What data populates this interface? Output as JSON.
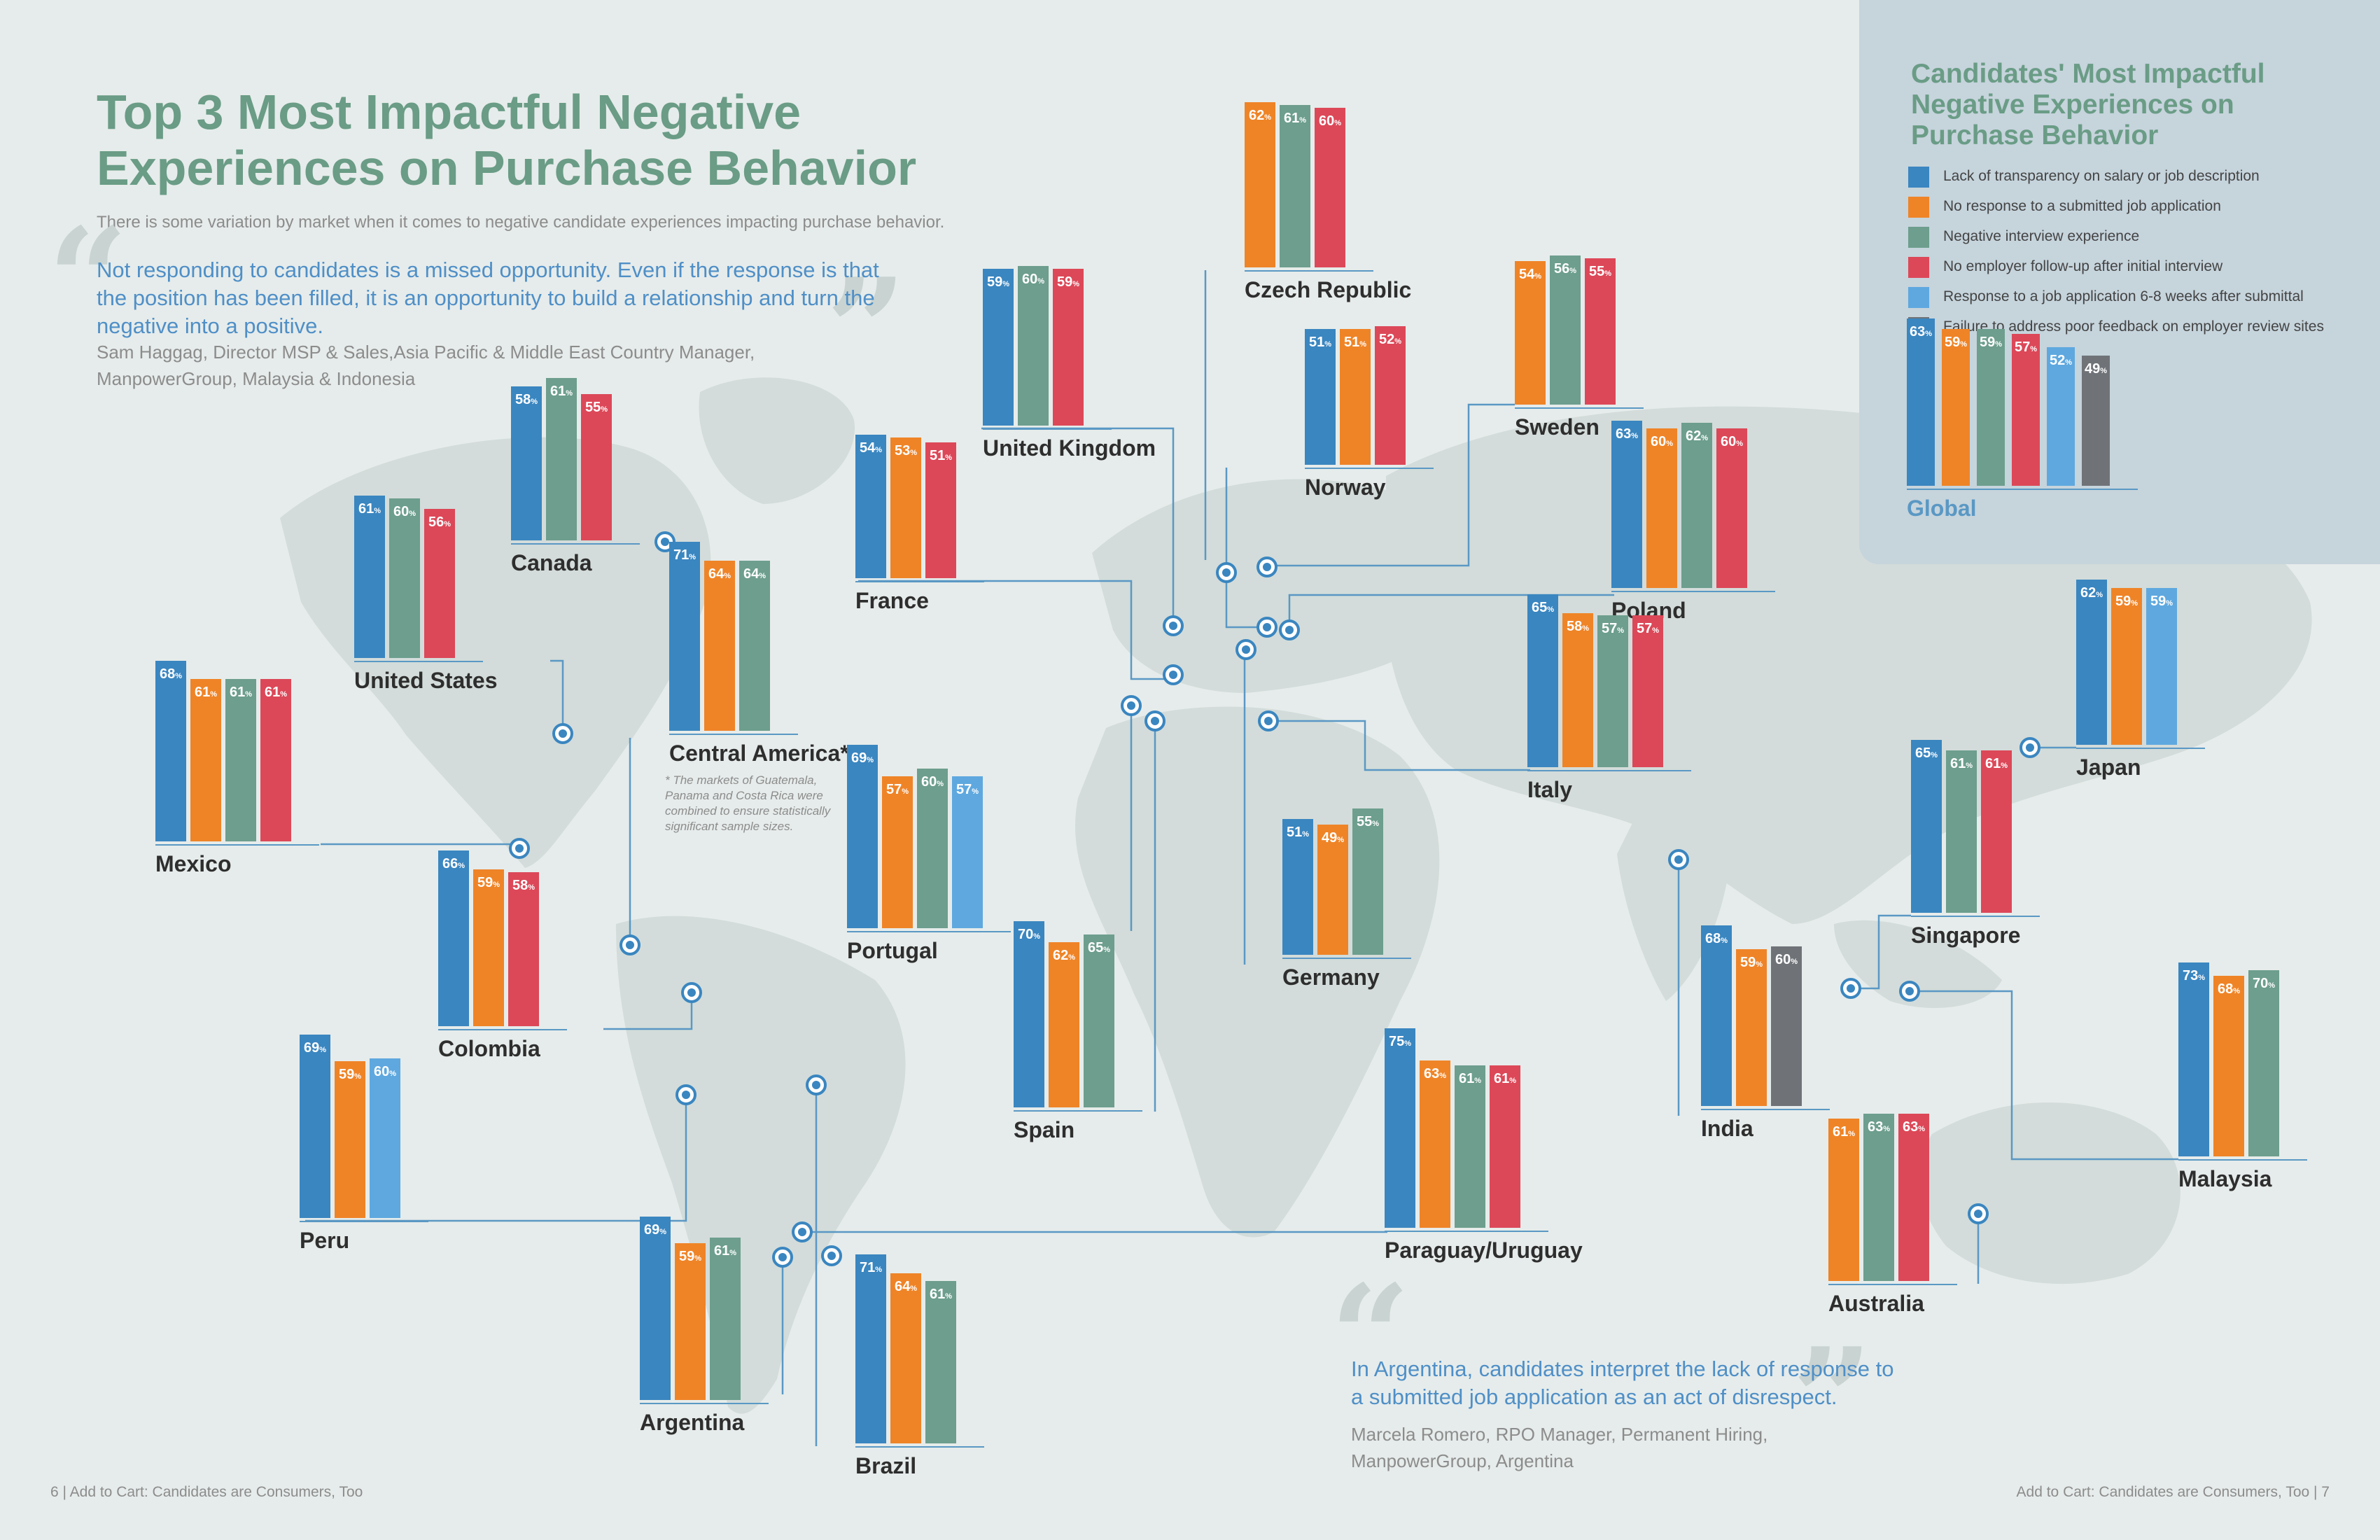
{
  "title": "Top 3 Most Impactful Negative Experiences on Purchase Behavior",
  "subtitle": "There is some variation by market when it comes to negative candidate experiences impacting purchase behavior.",
  "quote1": {
    "text": "Not responding to candidates is a missed opportunity. Even if the response is that the position has been filled, it is an opportunity to build a relationship and turn the negative into a positive.",
    "attribution": "Sam Haggag, Director MSP & Sales,Asia Pacific & Middle East Country Manager, ManpowerGroup, Malaysia & Indonesia"
  },
  "quote2": {
    "text": "In Argentina, candidates interpret the lack of response to a submitted job application as an act of disrespect.",
    "attribution": "Marcela Romero, RPO Manager, Permanent Hiring, ManpowerGroup, Argentina"
  },
  "footer_left": "6 |   Add to Cart: Candidates are Consumers, Too",
  "footer_right": "Add to Cart: Candidates are Consumers, Too   |  7",
  "central_america_note": "* The markets of Guatemala, Panama and Costa Rica were combined to ensure statistically significant sample sizes.",
  "legend_title": "Candidates' Most Impactful Negative Experiences on Purchase Behavior",
  "chart_data": {
    "type": "bar",
    "unit": "%",
    "series": [
      {
        "key": "salary",
        "name": "Lack of transparency on salary or job description",
        "color": "#3a86c0"
      },
      {
        "key": "noresp",
        "name": "No response to a submitted job application",
        "color": "#ef8427"
      },
      {
        "key": "interview",
        "name": "Negative interview experience",
        "color": "#6d9e8e"
      },
      {
        "key": "followup",
        "name": "No employer follow-up after initial interview",
        "color": "#dc4858"
      },
      {
        "key": "delay",
        "name": "Response to a job application 6-8 weeks after submittal",
        "color": "#5ea8df"
      },
      {
        "key": "feedback",
        "name": "Failure to address poor feedback on employer review sites",
        "color": "#6f7378"
      }
    ],
    "markets": [
      {
        "name": "Global",
        "bars": [
          [
            "salary",
            63
          ],
          [
            "noresp",
            59
          ],
          [
            "interview",
            59
          ],
          [
            "followup",
            57
          ],
          [
            "delay",
            52
          ],
          [
            "feedback",
            49
          ]
        ]
      },
      {
        "name": "Canada",
        "bars": [
          [
            "salary",
            58
          ],
          [
            "interview",
            61
          ],
          [
            "followup",
            55
          ]
        ]
      },
      {
        "name": "United States",
        "bars": [
          [
            "salary",
            61
          ],
          [
            "interview",
            60
          ],
          [
            "followup",
            56
          ]
        ]
      },
      {
        "name": "Mexico",
        "bars": [
          [
            "salary",
            68
          ],
          [
            "noresp",
            61
          ],
          [
            "interview",
            61
          ],
          [
            "followup",
            61
          ]
        ]
      },
      {
        "name": "Central America*",
        "bars": [
          [
            "salary",
            71
          ],
          [
            "noresp",
            64
          ],
          [
            "interview",
            64
          ]
        ]
      },
      {
        "name": "Colombia",
        "bars": [
          [
            "salary",
            66
          ],
          [
            "noresp",
            59
          ],
          [
            "followup",
            58
          ]
        ]
      },
      {
        "name": "Peru",
        "bars": [
          [
            "salary",
            69
          ],
          [
            "noresp",
            59
          ],
          [
            "delay",
            60
          ]
        ]
      },
      {
        "name": "Argentina",
        "bars": [
          [
            "salary",
            69
          ],
          [
            "noresp",
            59
          ],
          [
            "interview",
            61
          ]
        ]
      },
      {
        "name": "Brazil",
        "bars": [
          [
            "salary",
            71
          ],
          [
            "noresp",
            64
          ],
          [
            "interview",
            61
          ]
        ]
      },
      {
        "name": "United Kingdom",
        "bars": [
          [
            "salary",
            59
          ],
          [
            "interview",
            60
          ],
          [
            "followup",
            59
          ]
        ]
      },
      {
        "name": "France",
        "bars": [
          [
            "salary",
            54
          ],
          [
            "noresp",
            53
          ],
          [
            "followup",
            51
          ]
        ]
      },
      {
        "name": "Portugal",
        "bars": [
          [
            "salary",
            69
          ],
          [
            "noresp",
            57
          ],
          [
            "interview",
            60
          ],
          [
            "delay",
            57
          ]
        ]
      },
      {
        "name": "Spain",
        "bars": [
          [
            "salary",
            70
          ],
          [
            "noresp",
            62
          ],
          [
            "interview",
            65
          ]
        ]
      },
      {
        "name": "Czech Republic",
        "bars": [
          [
            "noresp",
            62
          ],
          [
            "interview",
            61
          ],
          [
            "followup",
            60
          ]
        ]
      },
      {
        "name": "Norway",
        "bars": [
          [
            "salary",
            51
          ],
          [
            "noresp",
            51
          ],
          [
            "followup",
            52
          ]
        ]
      },
      {
        "name": "Sweden",
        "bars": [
          [
            "noresp",
            54
          ],
          [
            "interview",
            56
          ],
          [
            "followup",
            55
          ]
        ]
      },
      {
        "name": "Poland",
        "bars": [
          [
            "salary",
            63
          ],
          [
            "noresp",
            60
          ],
          [
            "interview",
            62
          ],
          [
            "followup",
            60
          ]
        ]
      },
      {
        "name": "Italy",
        "bars": [
          [
            "salary",
            65
          ],
          [
            "noresp",
            58
          ],
          [
            "interview",
            57
          ],
          [
            "followup",
            57
          ]
        ]
      },
      {
        "name": "Germany",
        "bars": [
          [
            "salary",
            51
          ],
          [
            "noresp",
            49
          ],
          [
            "interview",
            55
          ]
        ]
      },
      {
        "name": "Paraguay/Uruguay",
        "bars": [
          [
            "salary",
            75
          ],
          [
            "noresp",
            63
          ],
          [
            "interview",
            61
          ],
          [
            "followup",
            61
          ]
        ]
      },
      {
        "name": "India",
        "bars": [
          [
            "salary",
            68
          ],
          [
            "noresp",
            59
          ],
          [
            "feedback",
            60
          ]
        ]
      },
      {
        "name": "Japan",
        "bars": [
          [
            "salary",
            62
          ],
          [
            "noresp",
            59
          ],
          [
            "delay",
            59
          ]
        ]
      },
      {
        "name": "Singapore",
        "bars": [
          [
            "salary",
            65
          ],
          [
            "interview",
            61
          ],
          [
            "followup",
            61
          ]
        ]
      },
      {
        "name": "Malaysia",
        "bars": [
          [
            "salary",
            73
          ],
          [
            "noresp",
            68
          ],
          [
            "interview",
            70
          ]
        ]
      },
      {
        "name": "Australia",
        "bars": [
          [
            "noresp",
            61
          ],
          [
            "interview",
            63
          ],
          [
            "followup",
            63
          ]
        ]
      }
    ]
  }
}
